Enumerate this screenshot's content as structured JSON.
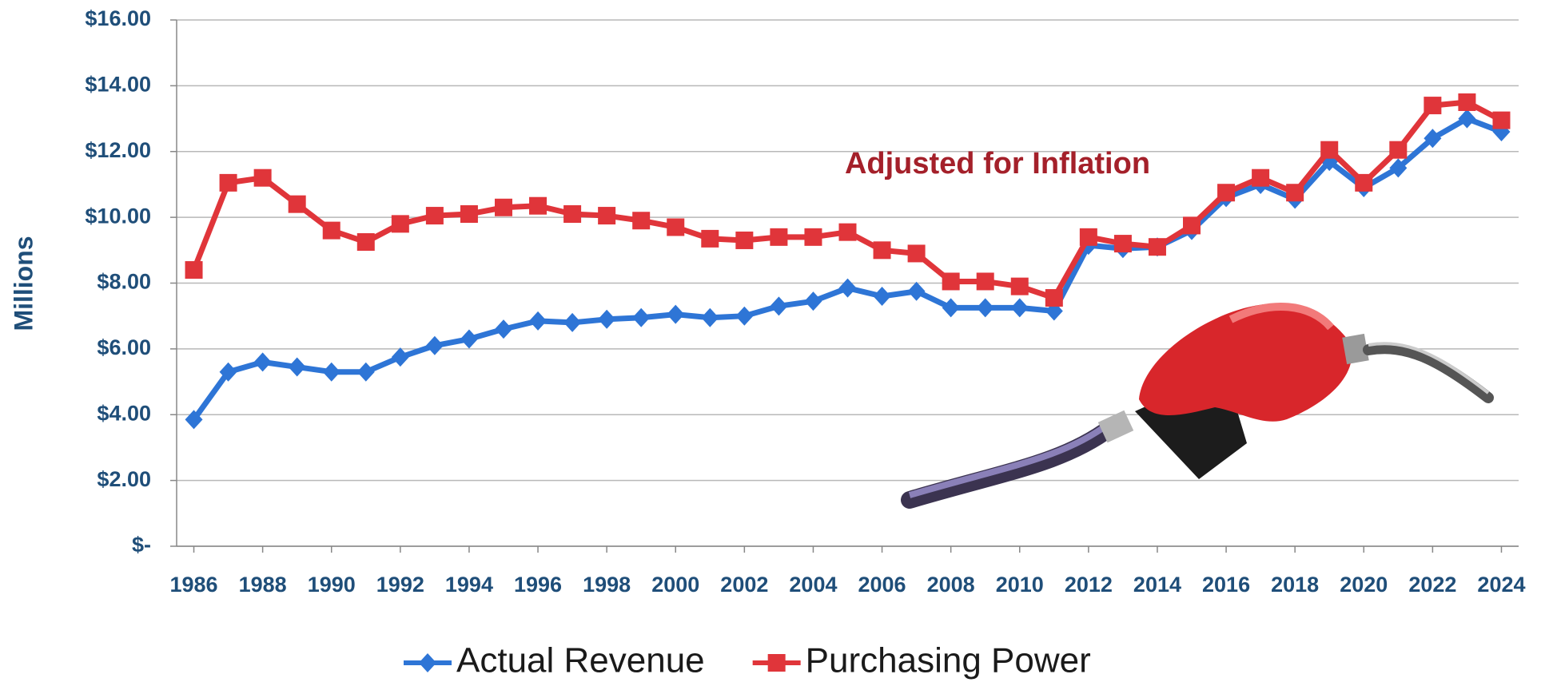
{
  "chart_data": {
    "type": "line",
    "ylabel": "Millions",
    "annotation": "Adjusted for Inflation",
    "x": [
      1986,
      1987,
      1988,
      1989,
      1990,
      1991,
      1992,
      1993,
      1994,
      1995,
      1996,
      1997,
      1998,
      1999,
      2000,
      2001,
      2002,
      2003,
      2004,
      2005,
      2006,
      2007,
      2008,
      2009,
      2010,
      2011,
      2012,
      2013,
      2014,
      2015,
      2016,
      2017,
      2018,
      2019,
      2020,
      2021,
      2022,
      2023,
      2024
    ],
    "series": [
      {
        "name": "Actual Revenue",
        "color": "#2e75d6",
        "marker": "diamond",
        "values": [
          3.85,
          5.3,
          5.6,
          5.45,
          5.3,
          5.3,
          5.75,
          6.1,
          6.3,
          6.6,
          6.85,
          6.8,
          6.9,
          6.95,
          7.05,
          6.95,
          7.0,
          7.3,
          7.45,
          7.85,
          7.6,
          7.75,
          7.25,
          7.25,
          7.25,
          7.15,
          9.15,
          9.05,
          9.1,
          9.6,
          10.6,
          11.0,
          10.55,
          11.7,
          10.9,
          11.5,
          12.4,
          13.0,
          12.6
        ]
      },
      {
        "name": "Purchasing Power",
        "color": "#e0353a",
        "marker": "square",
        "values": [
          8.4,
          11.05,
          11.2,
          10.4,
          9.6,
          9.25,
          9.8,
          10.05,
          10.1,
          10.3,
          10.35,
          10.1,
          10.05,
          9.9,
          9.7,
          9.35,
          9.3,
          9.4,
          9.4,
          9.55,
          9.0,
          8.9,
          8.05,
          8.05,
          7.9,
          7.55,
          9.4,
          9.2,
          9.1,
          9.75,
          10.75,
          11.2,
          10.75,
          12.05,
          11.05,
          12.05,
          13.4,
          13.5,
          12.95
        ]
      }
    ],
    "xlim": [
      1985.5,
      2024.5
    ],
    "xticks": [
      1986,
      1988,
      1990,
      1992,
      1994,
      1996,
      1998,
      2000,
      2002,
      2004,
      2006,
      2008,
      2010,
      2012,
      2014,
      2016,
      2018,
      2020,
      2022,
      2024
    ],
    "ylim": [
      0,
      16
    ],
    "yticks": [
      {
        "value": 0,
        "label": "$-"
      },
      {
        "value": 2,
        "label": "$2.00"
      },
      {
        "value": 4,
        "label": "$4.00"
      },
      {
        "value": 6,
        "label": "$6.00"
      },
      {
        "value": 8,
        "label": "$8.00"
      },
      {
        "value": 10,
        "label": "$10.00"
      },
      {
        "value": 12,
        "label": "$12.00"
      },
      {
        "value": 14,
        "label": "$14.00"
      },
      {
        "value": 16,
        "label": "$16.00"
      }
    ],
    "grid": true,
    "legend": "bottom"
  }
}
